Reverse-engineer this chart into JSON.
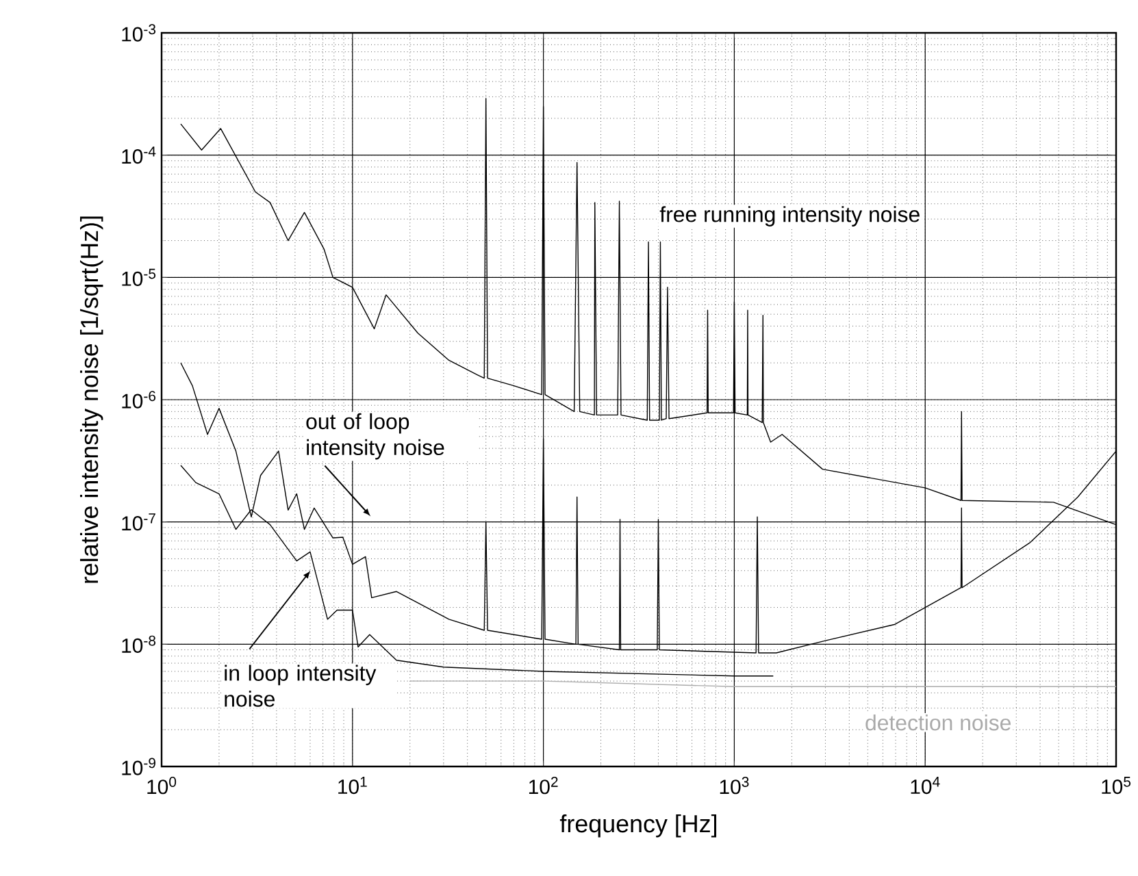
{
  "chart_data": {
    "type": "line",
    "xlabel": "frequency [Hz]",
    "ylabel": "relative intensity noise [1/sqrt(Hz)]",
    "log": "xy",
    "grid": true,
    "marker": "none",
    "xlim": [
      1,
      100000
    ],
    "ylim": [
      1e-09,
      0.001
    ],
    "xticks": [
      {
        "value": 1,
        "label": "10$^{0}$"
      },
      {
        "value": 10,
        "label": "10$^{1}$"
      },
      {
        "value": 100,
        "label": "10$^{2}$"
      },
      {
        "value": 1000,
        "label": "10$^{3}$"
      },
      {
        "value": 10000,
        "label": "10$^{4}$"
      },
      {
        "value": 100000,
        "label": "10$^{5}$"
      }
    ],
    "yticks": [
      {
        "value": 1e-09,
        "label": "10$^{-9}$"
      },
      {
        "value": 1e-08,
        "label": "10$^{-8}$"
      },
      {
        "value": 1e-07,
        "label": "10$^{-7}$"
      },
      {
        "value": 1e-06,
        "label": "10$^{-6}$"
      },
      {
        "value": 1e-05,
        "label": "10$^{-5}$"
      },
      {
        "value": 0.0001,
        "label": "10$^{-4}$"
      },
      {
        "value": 0.001,
        "label": "10$^{-3}$"
      }
    ],
    "series": [
      {
        "name": "free running intensity noise",
        "color": "#000000",
        "x": [
          1.26,
          1.62,
          2.04,
          3.1,
          3.7,
          4.6,
          5.6,
          7.1,
          7.9,
          10,
          13,
          15,
          22,
          32,
          45,
          49,
          50,
          51,
          70,
          98,
          100,
          102,
          145,
          150,
          155,
          185,
          186,
          190,
          245,
          250,
          255,
          350,
          355,
          360,
          405,
          410,
          415,
          440,
          447,
          455,
          720,
          725,
          730,
          990,
          1000,
          1010,
          1170,
          1175,
          1180,
          1400,
          1413,
          1420,
          1550,
          1780,
          2900,
          10000,
          15400,
          15500,
          15600,
          47000,
          100000
        ],
        "values": [
          0.00018,
          0.00011,
          0.000165,
          5e-05,
          4.1e-05,
          2e-05,
          3.4e-05,
          1.7e-05,
          1e-05,
          8.3e-06,
          3.8e-06,
          7.2e-06,
          3.5e-06,
          2.1e-06,
          1.6e-06,
          1.5e-06,
          0.00029,
          1.5e-06,
          1.3e-06,
          1.1e-06,
          0.00025,
          1.1e-06,
          8e-07,
          8.7e-05,
          8e-07,
          7.5e-07,
          4.1e-05,
          7.5e-07,
          7.5e-07,
          4.2e-05,
          7.5e-07,
          6.8e-07,
          1.95e-05,
          6.8e-07,
          6.8e-07,
          1.95e-05,
          6.8e-07,
          7e-07,
          8.3e-06,
          7e-07,
          7.8e-07,
          5.4e-06,
          7.8e-07,
          7.8e-07,
          6.3e-06,
          7.8e-07,
          7.5e-07,
          5.4e-06,
          7.5e-07,
          6.5e-07,
          4.9e-06,
          6.5e-07,
          4.5e-07,
          5.2e-07,
          2.7e-07,
          1.9e-07,
          1.5e-07,
          8e-07,
          1.5e-07,
          1.45e-07,
          9.5e-08
        ]
      },
      {
        "name": "out of loop intensity noise",
        "color": "#000000",
        "x": [
          1.26,
          1.45,
          1.74,
          2.0,
          2.45,
          2.95,
          3.3,
          4.1,
          4.6,
          5.1,
          5.6,
          6.3,
          7.9,
          8.9,
          10,
          11.7,
          12.6,
          17,
          32,
          49,
          50,
          51,
          98,
          100,
          102,
          148,
          150,
          152,
          250,
          252,
          254,
          395,
          400,
          405,
          1300,
          1320,
          1340,
          1660,
          3000,
          6900,
          15400,
          15500,
          15600,
          35500,
          63000,
          100000
        ],
        "values": [
          2e-06,
          1.3e-06,
          5.2e-07,
          8.5e-07,
          3.8e-07,
          1.1e-07,
          2.4e-07,
          3.8e-07,
          1.25e-07,
          1.7e-07,
          8.7e-08,
          1.3e-07,
          7.4e-08,
          7.5e-08,
          4.5e-08,
          5.2e-08,
          2.4e-08,
          2.7e-08,
          1.6e-08,
          1.3e-08,
          1e-07,
          1.3e-08,
          1.1e-08,
          4.8e-07,
          1.1e-08,
          1e-08,
          1.6e-07,
          1e-08,
          9e-09,
          1.05e-07,
          9e-09,
          9e-09,
          1.05e-07,
          9e-09,
          8.5e-09,
          1.1e-07,
          8.5e-09,
          8.5e-09,
          1.07e-08,
          1.45e-08,
          2.9e-08,
          1.3e-07,
          2.9e-08,
          6.8e-08,
          1.6e-07,
          3.8e-07
        ]
      },
      {
        "name": "in loop intensity noise",
        "color": "#000000",
        "x": [
          1.26,
          1.51,
          2.0,
          2.45,
          2.95,
          3.7,
          5.1,
          6.0,
          7.4,
          8.3,
          10,
          10.7,
          12.3,
          17,
          30,
          100,
          1000,
          1600
        ],
        "values": [
          2.9e-07,
          2.1e-07,
          1.7e-07,
          8.7e-08,
          1.26e-07,
          9.5e-08,
          4.8e-08,
          5.7e-08,
          1.6e-08,
          1.9e-08,
          1.9e-08,
          9.5e-09,
          1.2e-08,
          7.4e-09,
          6.5e-09,
          6e-09,
          5.5e-09,
          5.5e-09
        ]
      },
      {
        "name": "detection noise",
        "color": "#aaaaaa",
        "x": [
          20,
          100,
          1000,
          10000,
          100000
        ],
        "values": [
          5e-09,
          5e-09,
          4.5e-09,
          4.5e-09,
          4.5e-09
        ]
      }
    ]
  }
}
